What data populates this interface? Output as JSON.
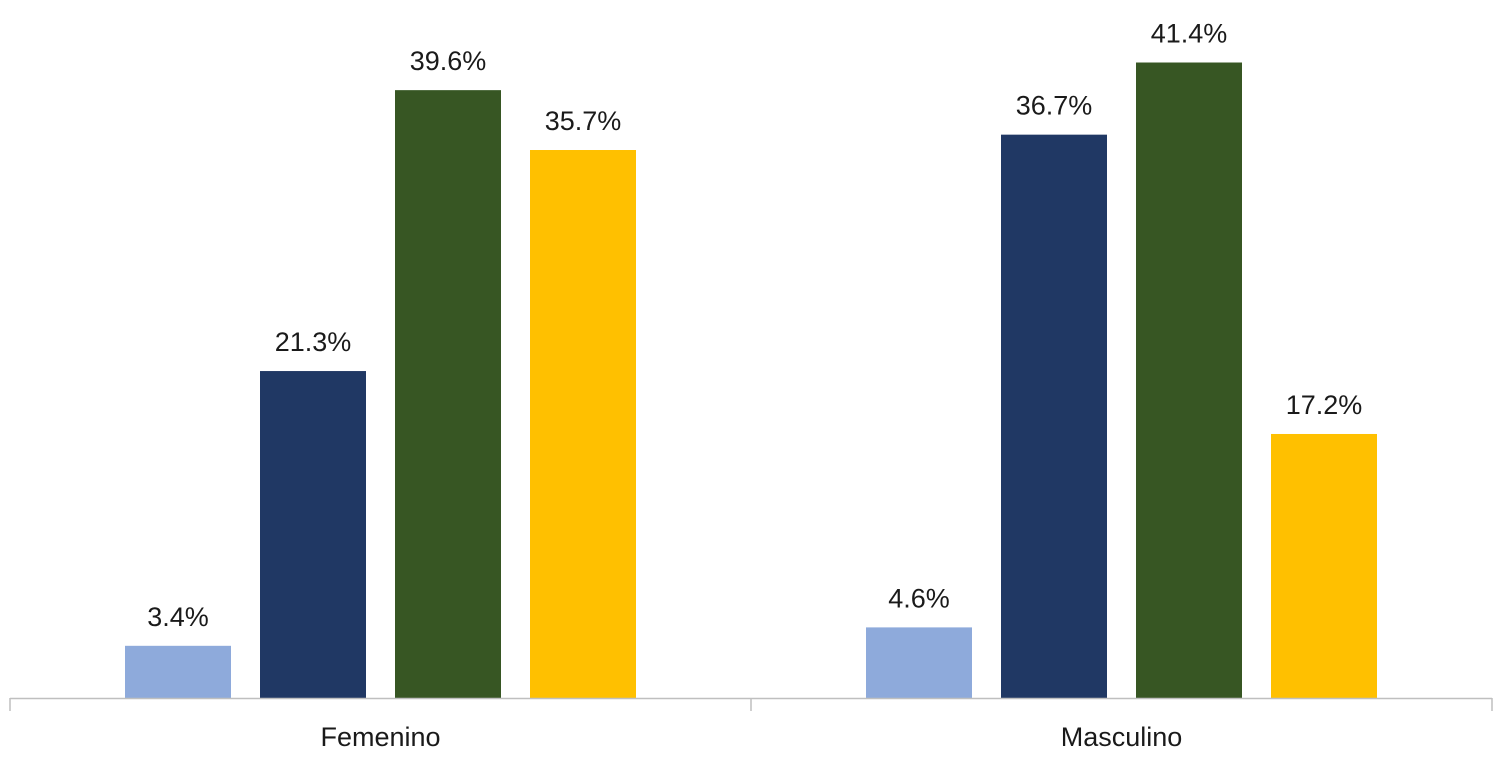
{
  "chart_data": {
    "type": "bar",
    "categories": [
      "Femenino",
      "Masculino"
    ],
    "series": [
      {
        "values": [
          3.4,
          4.6
        ],
        "color": "#8eaadb"
      },
      {
        "values": [
          21.3,
          36.7
        ],
        "color": "#203864"
      },
      {
        "values": [
          39.6,
          41.4
        ],
        "color": "#375623"
      },
      {
        "values": [
          35.7,
          17.2
        ],
        "color": "#ffc000"
      }
    ],
    "data_labels": [
      [
        "3.4%",
        "21.3%",
        "39.6%",
        "35.7%"
      ],
      [
        "4.6%",
        "36.7%",
        "41.4%",
        "17.2%"
      ]
    ],
    "value_unit": "%",
    "ylim": [
      0,
      45
    ],
    "grid": false,
    "legend": "none",
    "axis_color": "#bfbfbf"
  }
}
